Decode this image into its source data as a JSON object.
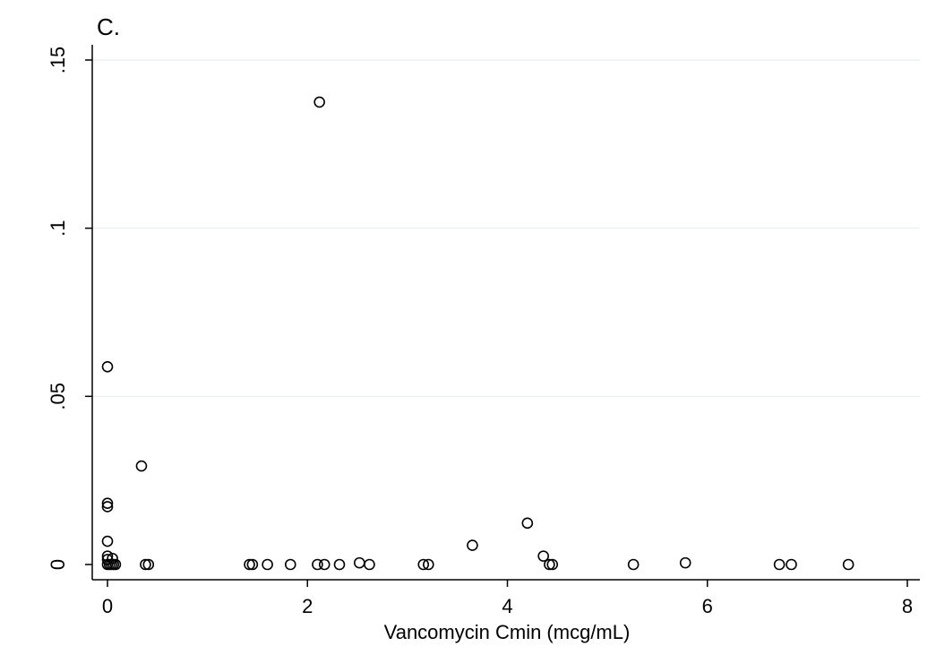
{
  "chart_data": {
    "type": "scatter",
    "title": "C.",
    "xlabel": "Vancomycin Cmin (mcg/mL)",
    "ylabel": "",
    "xlim": [
      0,
      8
    ],
    "ylim": [
      0,
      0.15
    ],
    "x_ticks": [
      0,
      2,
      4,
      6,
      8
    ],
    "x_tick_labels": [
      "0",
      "2",
      "4",
      "6",
      "8"
    ],
    "y_ticks": [
      0,
      0.05,
      0.1,
      0.15
    ],
    "y_tick_labels": [
      "0",
      ".05",
      ".1",
      ".15"
    ],
    "grid": "horizontal",
    "legend": "none",
    "marker": "hollow-circle",
    "colors": {
      "marker": "#000000",
      "grid": "#e5eef0",
      "background": "#ffffff"
    },
    "points": [
      {
        "x": 0.0,
        "y": 0.0588
      },
      {
        "x": 0.0,
        "y": 0.0182
      },
      {
        "x": 0.0,
        "y": 0.0172
      },
      {
        "x": 0.0,
        "y": 0.0069
      },
      {
        "x": 0.0,
        "y": 0.0025
      },
      {
        "x": 0.0,
        "y": 0.0015
      },
      {
        "x": 0.0,
        "y": 0.0
      },
      {
        "x": 0.02,
        "y": 0.0
      },
      {
        "x": 0.04,
        "y": 0.0
      },
      {
        "x": 0.06,
        "y": 0.0
      },
      {
        "x": 0.08,
        "y": 0.0
      },
      {
        "x": 0.05,
        "y": 0.0018
      },
      {
        "x": 0.34,
        "y": 0.0293
      },
      {
        "x": 0.38,
        "y": 0.0
      },
      {
        "x": 0.41,
        "y": 0.0
      },
      {
        "x": 1.42,
        "y": 0.0
      },
      {
        "x": 1.45,
        "y": 0.0
      },
      {
        "x": 1.6,
        "y": 0.0
      },
      {
        "x": 1.83,
        "y": 0.0
      },
      {
        "x": 2.12,
        "y": 0.1375
      },
      {
        "x": 2.1,
        "y": 0.0
      },
      {
        "x": 2.17,
        "y": 0.0
      },
      {
        "x": 2.32,
        "y": 0.0
      },
      {
        "x": 2.52,
        "y": 0.0005
      },
      {
        "x": 2.62,
        "y": 0.0
      },
      {
        "x": 3.16,
        "y": 0.0
      },
      {
        "x": 3.21,
        "y": 0.0
      },
      {
        "x": 3.65,
        "y": 0.0057
      },
      {
        "x": 4.2,
        "y": 0.0123
      },
      {
        "x": 4.36,
        "y": 0.0025
      },
      {
        "x": 4.42,
        "y": 0.0
      },
      {
        "x": 4.45,
        "y": 0.0
      },
      {
        "x": 5.26,
        "y": 0.0
      },
      {
        "x": 5.78,
        "y": 0.0005
      },
      {
        "x": 6.72,
        "y": 0.0
      },
      {
        "x": 6.84,
        "y": 0.0
      },
      {
        "x": 7.41,
        "y": 0.0
      }
    ]
  }
}
